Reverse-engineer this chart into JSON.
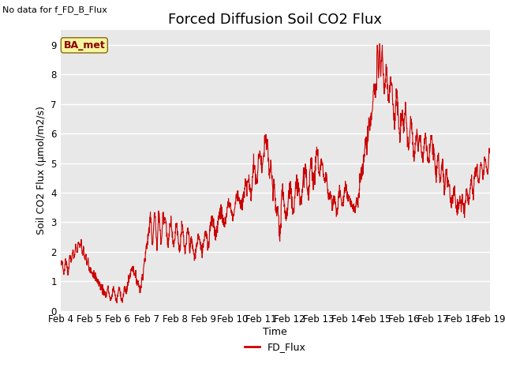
{
  "title": "Forced Diffusion Soil CO2 Flux",
  "ylabel": "Soil CO2 Flux (μmol/m2/s)",
  "xlabel": "Time",
  "no_data_text": "No data for f_FD_B_Flux",
  "legend_label": "FD_Flux",
  "ba_met_label": "BA_met",
  "line_color": "#cc0000",
  "fig_bg_color": "#ffffff",
  "plot_bg_color": "#e8e8e8",
  "grid_color": "#ffffff",
  "ylim": [
    0.0,
    9.5
  ],
  "yticks": [
    0.0,
    1.0,
    2.0,
    3.0,
    4.0,
    5.0,
    6.0,
    7.0,
    8.0,
    9.0
  ],
  "xtick_labels": [
    "Feb 4",
    "Feb 5",
    "Feb 6",
    "Feb 7",
    "Feb 8",
    "Feb 9",
    "Feb 10",
    "Feb 11",
    "Feb 12",
    "Feb 13",
    "Feb 14",
    "Feb 15",
    "Feb 16",
    "Feb 17",
    "Feb 18",
    "Feb 19"
  ],
  "title_fontsize": 13,
  "label_fontsize": 9,
  "tick_fontsize": 8.5,
  "no_data_fontsize": 8,
  "ba_met_fontsize": 9,
  "legend_fontsize": 9
}
